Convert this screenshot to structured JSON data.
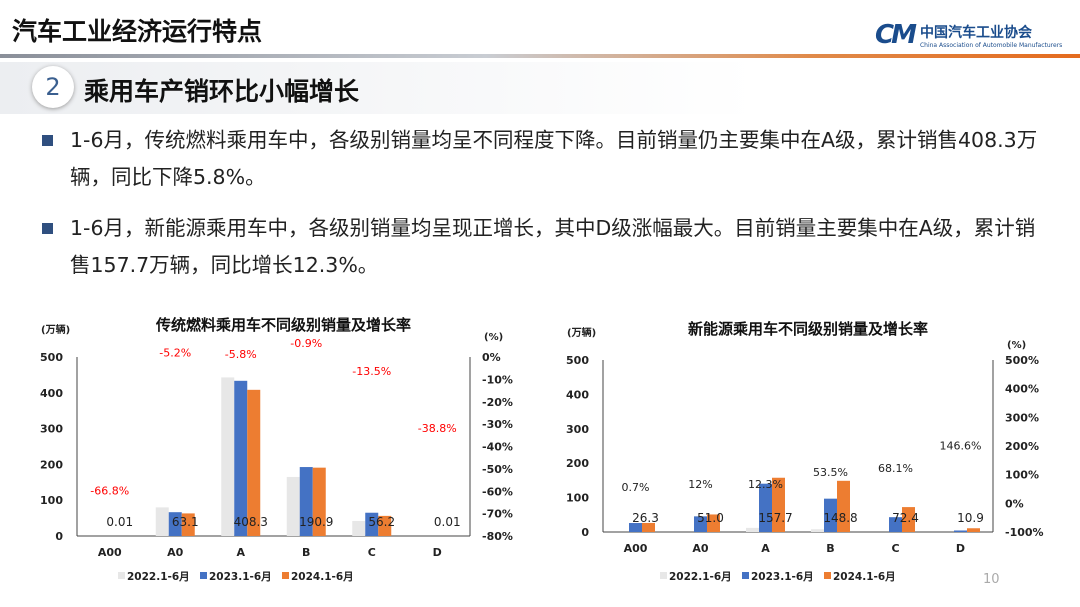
{
  "header": {
    "title": "汽车工业经济运行特点",
    "logo_cn": "中国汽车工业协会",
    "logo_en": "China Association of Automobile Manufacturers",
    "logo_mark": "CM"
  },
  "section": {
    "number": "2",
    "title": "乘用车产销环比小幅增长"
  },
  "bullets": [
    "1-6月，传统燃料乘用车中，各级别销量均呈不同程度下降。目前销量仍主要集中在A级，累计销售408.3万辆，同比下降5.8%。",
    "1-6月，新能源乘用车中，各级别销量均呈现正增长，其中D级涨幅最大。目前销量主要集中在A级，累计销售157.7万辆，同比增长12.3%。"
  ],
  "page_number": "10",
  "chart_data": [
    {
      "type": "bar",
      "title": "传统燃料乘用车不同级别销量及增长率",
      "ylabel": "(万辆)",
      "y2label": "(%)",
      "categories": [
        "A00",
        "A0",
        "A",
        "B",
        "C",
        "D"
      ],
      "ylim": [
        0,
        500
      ],
      "yticks": [
        "0",
        "100",
        "200",
        "300",
        "400",
        "500"
      ],
      "y2lim": [
        -80,
        0
      ],
      "y2ticks": [
        "-80%",
        "-70%",
        "-60%",
        "-50%",
        "-40%",
        "-30%",
        "-20%",
        "-10%",
        "0%"
      ],
      "series": [
        {
          "name": "2022.1-6月",
          "color": "#e7e7e7",
          "values": [
            0,
            80,
            443,
            165,
            42,
            0
          ]
        },
        {
          "name": "2023.1-6月",
          "color": "#4472c4",
          "values": [
            0,
            66.5,
            433.5,
            192.6,
            65,
            0
          ]
        },
        {
          "name": "2024.1-6月",
          "color": "#ed7d31",
          "values": [
            0.01,
            63.1,
            408.3,
            190.9,
            56.2,
            0.01
          ]
        }
      ],
      "value_labels": [
        "0.01",
        "63.1",
        "408.3",
        "190.9",
        "56.2",
        "0.01"
      ],
      "growth": [
        -66.8,
        -5.2,
        -5.8,
        -0.9,
        -13.5,
        -38.8
      ],
      "growth_labels": [
        "-66.8%",
        "-5.2%",
        "-5.8%",
        "-0.9%",
        "-13.5%",
        "-38.8%"
      ],
      "growth_color": "#ff0000",
      "legend": "bottom"
    },
    {
      "type": "bar",
      "title": "新能源乘用车不同级别销量及增长率",
      "ylabel": "(万辆)",
      "y2label": "(%)",
      "categories": [
        "A00",
        "A0",
        "A",
        "B",
        "C",
        "D"
      ],
      "ylim": [
        0,
        500
      ],
      "yticks": [
        "0",
        "100",
        "200",
        "300",
        "400",
        "500"
      ],
      "y2lim": [
        -100,
        500
      ],
      "y2ticks": [
        "-100%",
        "0%",
        "100%",
        "200%",
        "300%",
        "400%",
        "500%"
      ],
      "series": [
        {
          "name": "2022.1-6月",
          "color": "#e7e7e7",
          "values": [
            0,
            0,
            12,
            8,
            0,
            0
          ]
        },
        {
          "name": "2023.1-6月",
          "color": "#4472c4",
          "values": [
            26.1,
            45.5,
            140.4,
            96.9,
            43.1,
            4.4
          ]
        },
        {
          "name": "2024.1-6月",
          "color": "#ed7d31",
          "values": [
            26.3,
            51.0,
            157.7,
            148.8,
            72.4,
            10.9
          ]
        }
      ],
      "value_labels": [
        "26.3",
        "51.0",
        "157.7",
        "148.8",
        "72.4",
        "10.9"
      ],
      "growth": [
        0.7,
        12,
        12.3,
        53.5,
        68.1,
        146.6
      ],
      "growth_labels": [
        "0.7%",
        "12%",
        "12.3%",
        "53.5%",
        "68.1%",
        "146.6%"
      ],
      "growth_color": "#222222",
      "legend": "bottom"
    }
  ]
}
